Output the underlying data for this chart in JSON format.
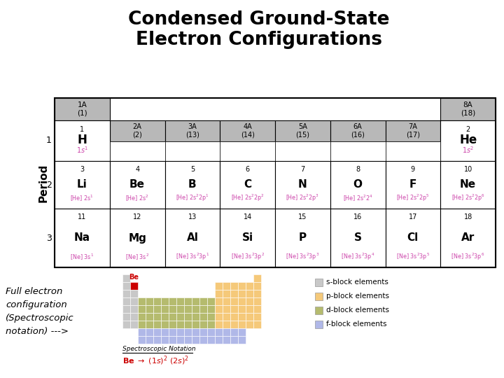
{
  "title": "Condensed Ground-State\nElectron Configurations",
  "title_fontsize": 19,
  "title_fontweight": "bold",
  "bg_color": "#ffffff",
  "header_bg": "#b8b8b8",
  "cell_bg": "#ffffff",
  "config_color": "#cc44aa",
  "period_label": "Period",
  "p2_elements": [
    {
      "num": "3",
      "sym": "Li",
      "config": "[He] 2s$^1$",
      "col": 0
    },
    {
      "num": "4",
      "sym": "Be",
      "config": "[He] 2s$^2$",
      "col": 1
    },
    {
      "num": "5",
      "sym": "B",
      "config": "[He] 2s$^2$2p$^1$",
      "col": 2
    },
    {
      "num": "6",
      "sym": "C",
      "config": "[He] 2s$^2$2p$^2$",
      "col": 3
    },
    {
      "num": "7",
      "sym": "N",
      "config": "[He] 2s$^2$2p$^3$",
      "col": 4
    },
    {
      "num": "8",
      "sym": "O",
      "config": "[He] 2s$^2$2$^4$",
      "col": 5
    },
    {
      "num": "9",
      "sym": "F",
      "config": "[He] 2s$^2$2p$^5$",
      "col": 6
    },
    {
      "num": "10",
      "sym": "Ne",
      "config": "[He] 2s$^2$2p$^6$",
      "col": 7
    }
  ],
  "p3_elements": [
    {
      "num": "11",
      "sym": "Na",
      "config": "[Ne] 3s$^1$",
      "col": 0
    },
    {
      "num": "12",
      "sym": "Mg",
      "config": "[Ne] 3s$^2$",
      "col": 1
    },
    {
      "num": "13",
      "sym": "Al",
      "config": "[Ne] 3s$^2$3p$^1$",
      "col": 2
    },
    {
      "num": "14",
      "sym": "Si",
      "config": "[Ne] 3s$^2$3p$^2$",
      "col": 3
    },
    {
      "num": "15",
      "sym": "P",
      "config": "[Ne] 3s$^2$3p$^3$",
      "col": 4
    },
    {
      "num": "16",
      "sym": "S",
      "config": "[Ne] 3s$^2$3p$^4$",
      "col": 5
    },
    {
      "num": "17",
      "sym": "Cl",
      "config": "[Ne] 3s$^2$3p$^5$",
      "col": 6
    },
    {
      "num": "18",
      "sym": "Ar",
      "config": "[Ne] 3s$^2$3p$^6$",
      "col": 7
    }
  ],
  "mini_pt": {
    "s_color": "#c8c8c8",
    "p_color": "#f5c97a",
    "d_color": "#b5bb6e",
    "f_color": "#b0b8e8",
    "be_color": "#cc0000",
    "legend": [
      {
        "label": "s-block elements",
        "color": "#c8c8c8"
      },
      {
        "label": "p-block elements",
        "color": "#f5c97a"
      },
      {
        "label": "d-block elements",
        "color": "#b5bb6e"
      },
      {
        "label": "f-block elements",
        "color": "#b0b8e8"
      }
    ]
  },
  "left_label": "Full electron\nconfiguration\n(Spectroscopic\nnotation) --->",
  "notation_label": "Spectroscopic Notation"
}
